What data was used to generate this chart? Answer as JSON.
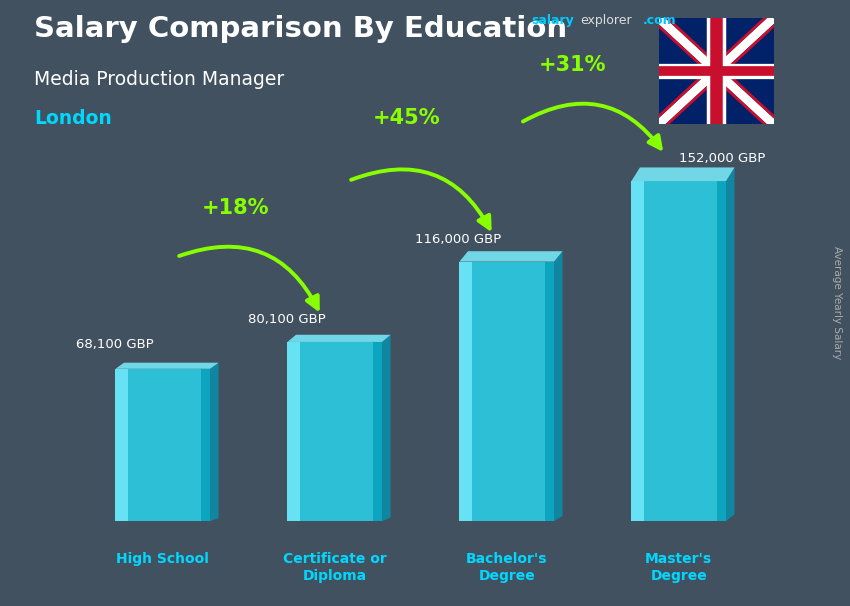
{
  "title_line1": "Salary Comparison By Education",
  "subtitle": "Media Production Manager",
  "location": "London",
  "ylabel": "Average Yearly Salary",
  "categories": [
    "High School",
    "Certificate or\nDiploma",
    "Bachelor's\nDegree",
    "Master's\nDegree"
  ],
  "values": [
    68100,
    80100,
    116000,
    152000
  ],
  "value_labels": [
    "68,100 GBP",
    "80,100 GBP",
    "116,000 GBP",
    "152,000 GBP"
  ],
  "pct_labels": [
    "+18%",
    "+45%",
    "+31%"
  ],
  "bar_color_face": "#29d8f0",
  "bar_color_light": "#7aefff",
  "bar_color_dark": "#0099b8",
  "bar_color_top": "#55e8ff",
  "background_color": "#4a5a6a",
  "title_color": "#ffffff",
  "subtitle_color": "#ffffff",
  "location_color": "#00d8ff",
  "value_label_color": "#ffffff",
  "pct_color": "#88ff00",
  "arrow_color": "#66ee00",
  "xlabel_color": "#00d8ff",
  "salary_color": "#00ccff",
  "explorer_color": "#dddddd",
  "dot_com_color": "#00ccff",
  "ylim": [
    0,
    195000
  ],
  "bar_width": 0.55,
  "bar_alpha": 0.82
}
